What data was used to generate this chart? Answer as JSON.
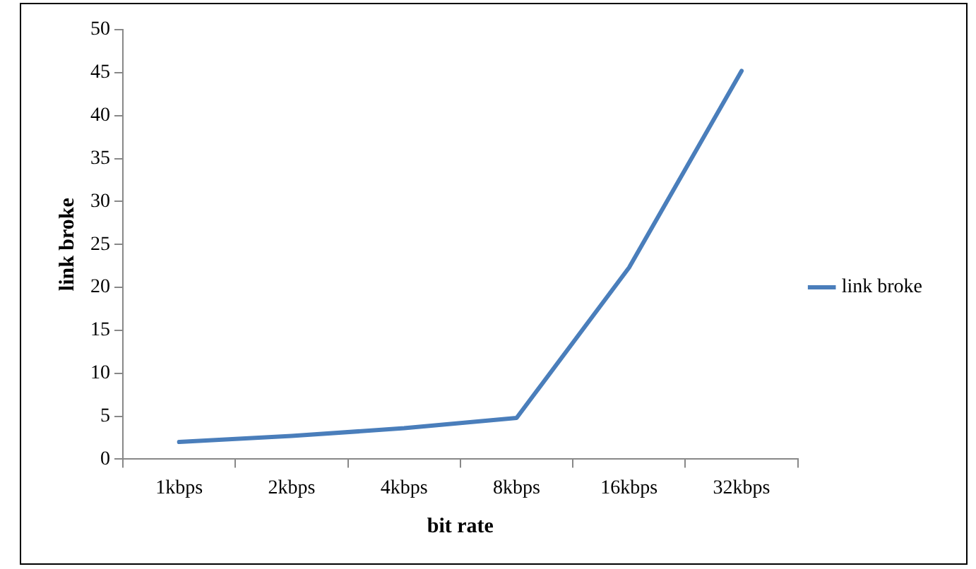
{
  "chart_data": {
    "type": "line",
    "xlabel": "bit rate",
    "ylabel": "link broke",
    "categories": [
      "1kbps",
      "2kbps",
      "4kbps",
      "8kbps",
      "16kbps",
      "32kbps"
    ],
    "series": [
      {
        "name": "link broke",
        "color": "#4a7ebb",
        "values": [
          2,
          2.7,
          3.6,
          4.8,
          22.3,
          45.2
        ]
      }
    ],
    "ylim": [
      0,
      50
    ],
    "yticks": [
      0,
      5,
      10,
      15,
      20,
      25,
      30,
      35,
      40,
      45,
      50
    ],
    "grid": false,
    "legend": "right",
    "marker": "none",
    "line_style": "solid"
  }
}
